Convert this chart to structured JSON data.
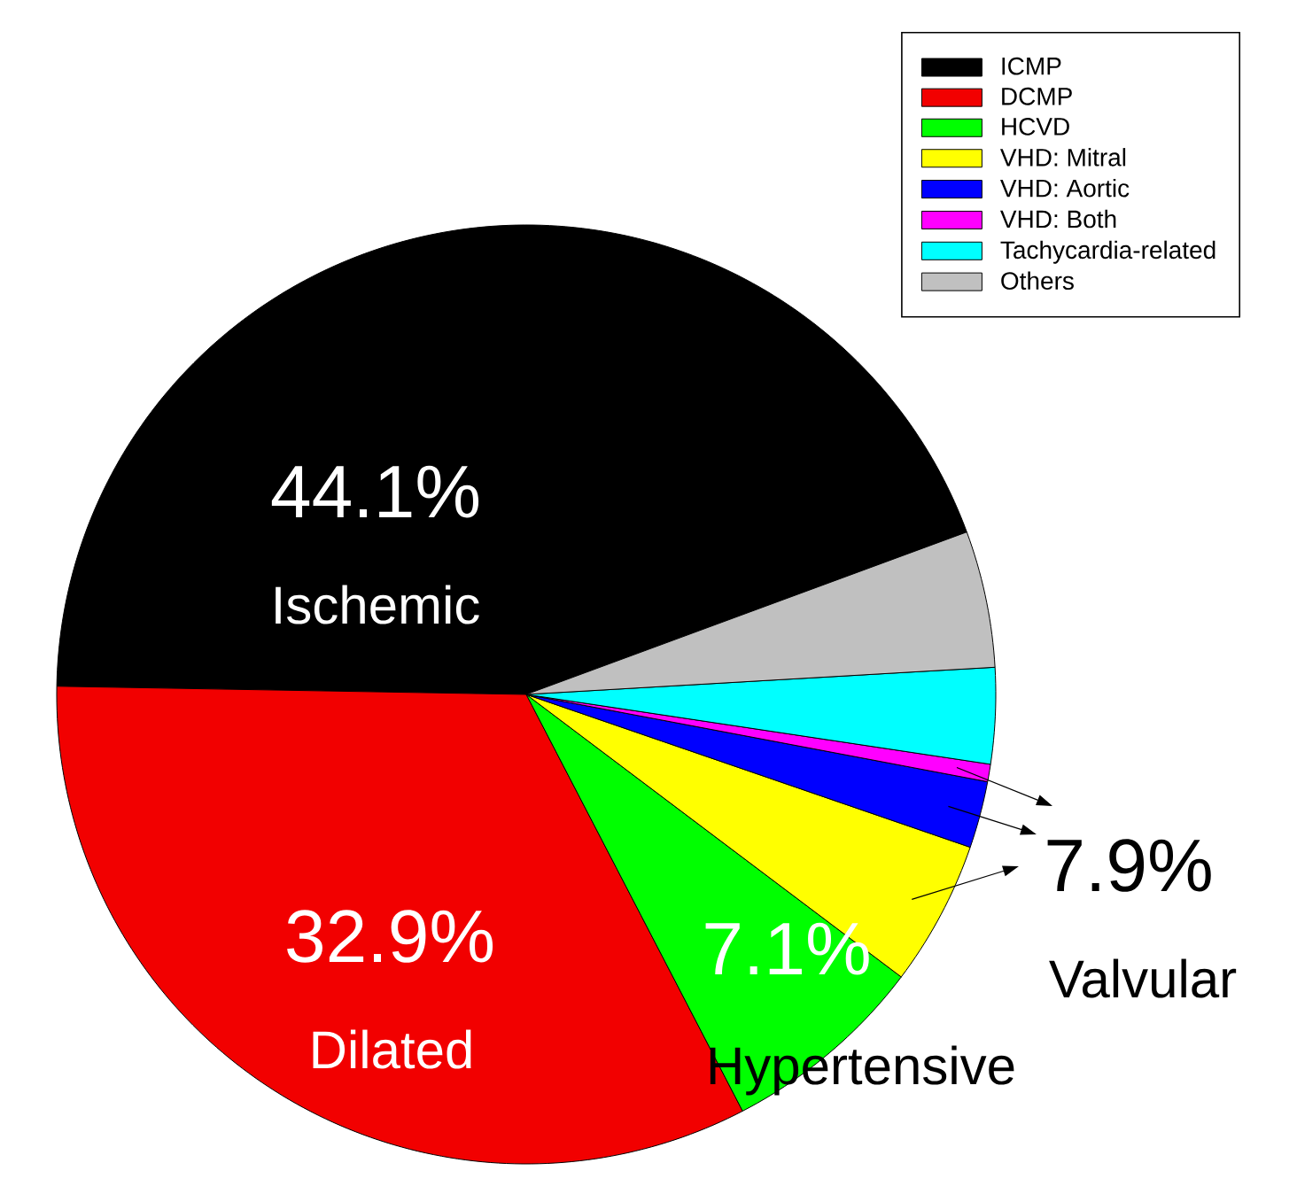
{
  "chart_data": {
    "type": "pie",
    "categories": [
      "ICMP",
      "DCMP",
      "HCVD",
      "VHD: Mitral",
      "VHD: Aortic",
      "VHD: Both",
      "Tachycardia-related",
      "Others"
    ],
    "values": [
      44.1,
      32.9,
      7.1,
      5.0,
      2.3,
      0.6,
      3.3,
      4.7
    ],
    "colors": [
      "#000000",
      "#f20000",
      "#00ff00",
      "#ffff00",
      "#0000ff",
      "#ff00ff",
      "#00ffff",
      "#c0c0c0"
    ],
    "value_labels": [
      "44.1%",
      "32.9%",
      "7.1%",
      null,
      null,
      null,
      null,
      null
    ],
    "annotations": [
      "Ischemic",
      "Dilated",
      "Hypertensive",
      "7.9%",
      "Valvular"
    ],
    "legend": "top right"
  }
}
